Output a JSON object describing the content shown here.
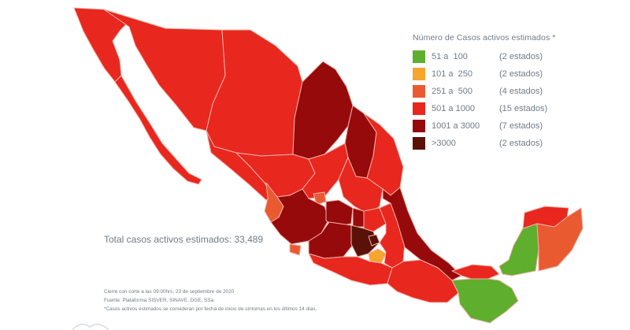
{
  "legend": {
    "title": "Número de Casos activos estimados *",
    "items": [
      {
        "range": "51 a  100",
        "count": "(2 estados)",
        "color": "#5fae2e"
      },
      {
        "range": "101 a  250",
        "count": "(2 estados)",
        "color": "#f6a52d"
      },
      {
        "range": "251 a  500",
        "count": "(4 estados)",
        "color": "#ea5a31"
      },
      {
        "range": "501 a 1000",
        "count": "(15 estados)",
        "color": "#e8271e"
      },
      {
        "range": "1001 a 3000",
        "count": "(7 estados)",
        "color": "#960a0b"
      },
      {
        "range": ">3000",
        "count": "(2 estados)",
        "color": "#5a1108"
      }
    ]
  },
  "total": "Total casos activos estimados: 33,489",
  "notes": [
    "Cierre con corte a las 09:00hrs, 23 de septiembre de 2020",
    "Fuente: Plataforma SISVER, SINAVE, DGE, SSa.",
    "*Casos activos estimados se consideran por fecha de inicio de síntomas en los últimos 14 días."
  ],
  "colors": {
    "level_501_1000": "#e8271e",
    "level_1001_3000": "#960a0b",
    "level_251_500": "#ea5a31",
    "level_101_250": "#f6a52d",
    "level_51_100": "#5fae2e",
    "level_over_3000": "#5a1108",
    "border": "#f2b2a8"
  }
}
